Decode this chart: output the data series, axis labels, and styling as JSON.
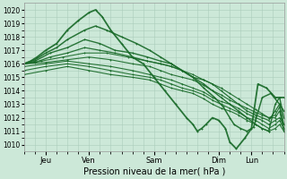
{
  "xlabel": "Pression niveau de la mer( hPa )",
  "bg_color": "#cce8d8",
  "grid_color": "#aaccbb",
  "line_color": "#1a6b2a",
  "ylim": [
    1009.5,
    1020.5
  ],
  "yticks": [
    1010,
    1011,
    1012,
    1013,
    1014,
    1015,
    1016,
    1017,
    1018,
    1019,
    1020
  ],
  "xlim": [
    0,
    120
  ],
  "day_ticks": [
    10,
    30,
    60,
    90,
    105
  ],
  "day_labels": [
    "Jeu",
    "Ven",
    "Sam",
    "Dim",
    "Lun"
  ],
  "lw_values": [
    1.3,
    1.1,
    1.0,
    0.9,
    0.8,
    0.8,
    0.8,
    0.8,
    0.8
  ],
  "lines": [
    [
      0,
      1016.0,
      3,
      1016.2,
      6,
      1016.5,
      10,
      1017.0,
      15,
      1017.5,
      20,
      1018.5,
      25,
      1019.2,
      30,
      1019.8,
      33,
      1020.0,
      36,
      1019.5,
      40,
      1018.5,
      45,
      1017.5,
      50,
      1016.5,
      55,
      1016.0,
      60,
      1015.0,
      65,
      1014.0,
      70,
      1013.0,
      75,
      1012.0,
      78,
      1011.5,
      80,
      1011.0,
      82,
      1011.2,
      84,
      1011.5,
      87,
      1012.0,
      90,
      1011.8,
      93,
      1011.2,
      95,
      1010.2,
      98,
      1009.7,
      102,
      1010.5,
      105,
      1011.2,
      108,
      1014.5,
      112,
      1014.2,
      116,
      1013.5,
      120,
      1013.5
    ],
    [
      0,
      1016.0,
      5,
      1016.3,
      10,
      1016.8,
      15,
      1017.2,
      20,
      1017.8,
      28,
      1018.5,
      33,
      1018.8,
      38,
      1018.5,
      45,
      1018.0,
      52,
      1017.5,
      58,
      1017.0,
      63,
      1016.5,
      68,
      1016.0,
      73,
      1015.5,
      78,
      1015.0,
      83,
      1014.2,
      88,
      1013.5,
      92,
      1012.8,
      95,
      1012.0,
      97,
      1011.5,
      100,
      1011.2,
      103,
      1011.0,
      106,
      1011.3,
      110,
      1013.5,
      114,
      1013.8,
      118,
      1013.0,
      120,
      1012.5
    ],
    [
      0,
      1016.0,
      5,
      1016.2,
      12,
      1016.8,
      20,
      1017.2,
      28,
      1017.8,
      35,
      1017.5,
      42,
      1017.0,
      50,
      1016.8,
      57,
      1016.5,
      63,
      1016.2,
      68,
      1016.0,
      73,
      1015.5,
      78,
      1015.0,
      83,
      1014.5,
      87,
      1014.0,
      91,
      1013.5,
      95,
      1013.0,
      99,
      1012.5,
      103,
      1012.0,
      107,
      1011.5,
      110,
      1011.2,
      113,
      1011.0,
      116,
      1013.0,
      118,
      1013.5,
      120,
      1012.0
    ],
    [
      0,
      1016.0,
      5,
      1016.1,
      12,
      1016.5,
      20,
      1016.8,
      28,
      1017.2,
      35,
      1017.0,
      42,
      1016.8,
      50,
      1016.5,
      57,
      1016.2,
      63,
      1016.0,
      68,
      1015.8,
      73,
      1015.5,
      78,
      1015.0,
      83,
      1014.8,
      87,
      1014.5,
      91,
      1014.0,
      95,
      1013.5,
      99,
      1013.0,
      103,
      1012.5,
      107,
      1012.2,
      110,
      1012.0,
      113,
      1011.8,
      116,
      1012.5,
      118,
      1013.0,
      120,
      1011.5
    ],
    [
      0,
      1016.0,
      8,
      1016.2,
      18,
      1016.5,
      28,
      1016.8,
      38,
      1016.8,
      48,
      1016.5,
      57,
      1016.2,
      63,
      1016.0,
      68,
      1015.8,
      73,
      1015.5,
      78,
      1015.2,
      83,
      1014.8,
      87,
      1014.5,
      91,
      1014.2,
      95,
      1013.8,
      99,
      1013.4,
      103,
      1013.0,
      107,
      1012.6,
      110,
      1012.3,
      113,
      1012.0,
      116,
      1012.2,
      118,
      1012.8,
      120,
      1011.2
    ],
    [
      0,
      1016.0,
      10,
      1016.1,
      20,
      1016.3,
      30,
      1016.5,
      40,
      1016.3,
      50,
      1016.0,
      58,
      1015.8,
      63,
      1015.5,
      68,
      1015.2,
      73,
      1015.0,
      78,
      1014.8,
      83,
      1014.4,
      87,
      1014.0,
      91,
      1013.7,
      95,
      1013.3,
      99,
      1013.0,
      103,
      1012.7,
      107,
      1012.4,
      110,
      1012.2,
      113,
      1012.0,
      116,
      1012.0,
      118,
      1012.5,
      120,
      1011.0
    ],
    [
      0,
      1015.8,
      10,
      1016.0,
      20,
      1016.2,
      30,
      1016.0,
      40,
      1015.8,
      50,
      1015.5,
      58,
      1015.2,
      63,
      1015.0,
      68,
      1014.8,
      73,
      1014.5,
      78,
      1014.2,
      83,
      1013.9,
      87,
      1013.5,
      91,
      1013.2,
      95,
      1013.0,
      99,
      1012.7,
      103,
      1012.3,
      107,
      1012.0,
      110,
      1011.8,
      113,
      1011.5,
      116,
      1011.8,
      118,
      1012.0,
      120,
      1011.5
    ],
    [
      0,
      1015.5,
      10,
      1015.8,
      20,
      1016.0,
      30,
      1015.8,
      40,
      1015.5,
      50,
      1015.2,
      58,
      1015.0,
      63,
      1014.8,
      68,
      1014.5,
      73,
      1014.2,
      78,
      1014.0,
      83,
      1013.7,
      87,
      1013.3,
      91,
      1013.0,
      95,
      1012.7,
      99,
      1012.4,
      103,
      1012.0,
      107,
      1011.8,
      110,
      1011.5,
      113,
      1011.2,
      116,
      1011.5,
      118,
      1011.8,
      120,
      1011.2
    ],
    [
      0,
      1015.2,
      10,
      1015.5,
      20,
      1015.8,
      30,
      1015.5,
      40,
      1015.2,
      50,
      1015.0,
      58,
      1014.8,
      63,
      1014.5,
      68,
      1014.2,
      73,
      1014.0,
      78,
      1013.8,
      83,
      1013.4,
      87,
      1013.0,
      91,
      1012.7,
      95,
      1012.5,
      99,
      1012.2,
      103,
      1011.8,
      107,
      1011.5,
      110,
      1011.2,
      113,
      1011.0,
      116,
      1011.2,
      118,
      1011.5,
      120,
      1011.0
    ]
  ]
}
